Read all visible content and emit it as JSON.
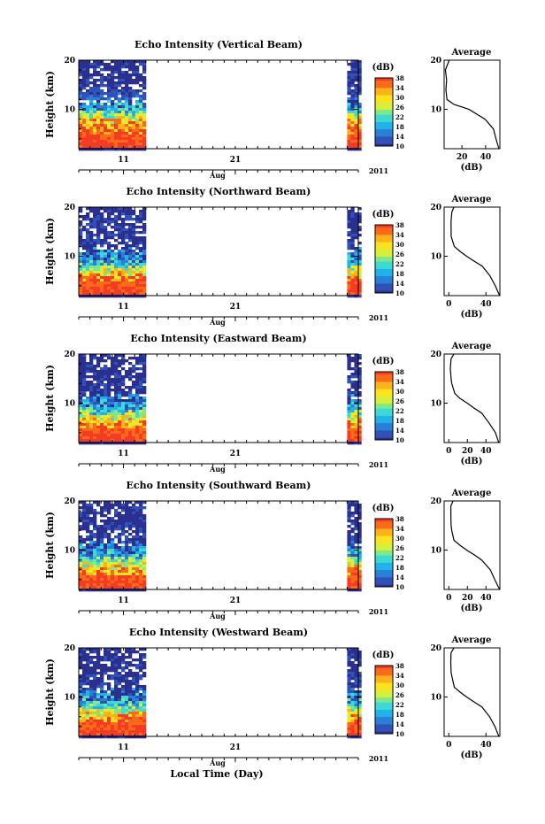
{
  "figure": {
    "x_axis_title": "Local Time (Day)",
    "month_label": "Aug",
    "year_label": "2011",
    "x_tick_labels": [
      "11",
      "21"
    ],
    "y_axis_title": "Height (km)",
    "y_tick_labels": [
      "20",
      "10"
    ],
    "colorbar_unit": "(dB)",
    "colorbar_tick_labels": [
      "38",
      "34",
      "30",
      "26",
      "22",
      "18",
      "14",
      "10"
    ],
    "colormap": [
      "#2b2f8f",
      "#3052b8",
      "#2a7fd6",
      "#22b2ea",
      "#3ed9d2",
      "#7ee88a",
      "#d6ef3c",
      "#fbe31e",
      "#fdb21a",
      "#fa6a19",
      "#f53b24"
    ],
    "side_panel_title": "Average",
    "side_unit": "(dB)"
  },
  "chart_data": [
    {
      "type": "heatmap",
      "title": "Echo Intensity (Vertical Beam)",
      "xlabel": "Local Time (Day)",
      "ylabel": "Height (km)",
      "xlim": [
        "Aug 7 2011",
        "Sep 1 2011"
      ],
      "ylim": [
        2,
        20
      ],
      "colorbar": {
        "label": "(dB)",
        "range": [
          10,
          38
        ]
      },
      "data_periods": [
        [
          "Aug 7",
          "Aug 13"
        ],
        [
          "Aug 31",
          "Sep 1"
        ]
      ],
      "layers_km_db": [
        [
          2,
          38
        ],
        [
          6,
          36
        ],
        [
          8,
          30
        ],
        [
          10,
          18
        ],
        [
          14,
          11
        ],
        [
          20,
          10
        ]
      ],
      "profile": {
        "title": "Average",
        "xlabel": "(dB)",
        "xticks": [
          "20",
          "40"
        ],
        "xlim": [
          5,
          52
        ],
        "x": [
          51,
          49,
          46,
          40,
          33,
          26,
          20,
          13,
          8,
          7,
          7,
          6,
          9
        ],
        "y": [
          2,
          4,
          6,
          8,
          9,
          10,
          10.5,
          11,
          12,
          14,
          16,
          18,
          20
        ]
      }
    },
    {
      "type": "heatmap",
      "title": "Echo Intensity (Northward Beam)",
      "xlabel": "Local Time (Day)",
      "ylabel": "Height (km)",
      "xlim": [
        "Aug 7 2011",
        "Sep 1 2011"
      ],
      "ylim": [
        2,
        20
      ],
      "colorbar": {
        "label": "(dB)",
        "range": [
          10,
          38
        ]
      },
      "data_periods": [
        [
          "Aug 7",
          "Aug 13"
        ],
        [
          "Aug 31",
          "Sep 1"
        ]
      ],
      "layers_km_db": [
        [
          2,
          38
        ],
        [
          5,
          36
        ],
        [
          7,
          28
        ],
        [
          9,
          18
        ],
        [
          12,
          11
        ],
        [
          20,
          10
        ]
      ],
      "profile": {
        "title": "Average",
        "xlabel": "(dB)",
        "xticks": [
          "0",
          "40"
        ],
        "xlim": [
          -5,
          55
        ],
        "x": [
          54,
          50,
          44,
          36,
          28,
          20,
          12,
          6,
          3,
          2,
          2,
          3,
          5
        ],
        "y": [
          2,
          4,
          6,
          8,
          9,
          10,
          11,
          12,
          14,
          15,
          17,
          19,
          20
        ]
      }
    },
    {
      "type": "heatmap",
      "title": "Echo Intensity (Eastward Beam)",
      "xlabel": "Local Time (Day)",
      "ylabel": "Height (km)",
      "xlim": [
        "Aug 7 2011",
        "Sep 1 2011"
      ],
      "ylim": [
        2,
        20
      ],
      "colorbar": {
        "label": "(dB)",
        "range": [
          10,
          38
        ]
      },
      "data_periods": [
        [
          "Aug 7",
          "Aug 13"
        ],
        [
          "Aug 31",
          "Sep 1"
        ]
      ],
      "layers_km_db": [
        [
          2,
          38
        ],
        [
          5,
          36
        ],
        [
          7,
          28
        ],
        [
          9,
          18
        ],
        [
          12,
          11
        ],
        [
          20,
          10
        ]
      ],
      "profile": {
        "title": "Average",
        "xlabel": "(dB)",
        "xticks": [
          "0",
          "20",
          "40"
        ],
        "xlim": [
          -5,
          55
        ],
        "x": [
          54,
          50,
          44,
          36,
          28,
          20,
          12,
          6,
          3,
          2,
          2,
          3,
          5
        ],
        "y": [
          2,
          4,
          6,
          8,
          9,
          10,
          11,
          12,
          14,
          15,
          17,
          19,
          20
        ]
      }
    },
    {
      "type": "heatmap",
      "title": "Echo Intensity (Southward Beam)",
      "xlabel": "Local Time (Day)",
      "ylabel": "Height (km)",
      "xlim": [
        "Aug 7 2011",
        "Sep 1 2011"
      ],
      "ylim": [
        2,
        20
      ],
      "colorbar": {
        "label": "(dB)",
        "range": [
          10,
          38
        ]
      },
      "data_periods": [
        [
          "Aug 7",
          "Aug 13"
        ],
        [
          "Aug 31",
          "Sep 1"
        ]
      ],
      "layers_km_db": [
        [
          2,
          38
        ],
        [
          5,
          36
        ],
        [
          7,
          28
        ],
        [
          9,
          18
        ],
        [
          12,
          11
        ],
        [
          20,
          10
        ]
      ],
      "profile": {
        "title": "Average",
        "xlabel": "(dB)",
        "xticks": [
          "0",
          "20",
          "40"
        ],
        "xlim": [
          -5,
          55
        ],
        "x": [
          54,
          50,
          44,
          36,
          28,
          20,
          12,
          6,
          3,
          2,
          2,
          3,
          5
        ],
        "y": [
          2,
          4,
          6,
          8,
          9,
          10,
          11,
          12,
          14,
          15,
          17,
          19,
          20
        ]
      }
    },
    {
      "type": "heatmap",
      "title": "Echo Intensity (Westward Beam)",
      "xlabel": "Local Time (Day)",
      "ylabel": "Height (km)",
      "xlim": [
        "Aug 7 2011",
        "Sep 1 2011"
      ],
      "ylim": [
        2,
        20
      ],
      "colorbar": {
        "label": "(dB)",
        "range": [
          10,
          38
        ]
      },
      "data_periods": [
        [
          "Aug 7",
          "Aug 13"
        ],
        [
          "Aug 31",
          "Sep 1"
        ]
      ],
      "layers_km_db": [
        [
          2,
          38
        ],
        [
          5,
          36
        ],
        [
          7,
          28
        ],
        [
          9,
          18
        ],
        [
          12,
          11
        ],
        [
          20,
          10
        ]
      ],
      "profile": {
        "title": "Average",
        "xlabel": "(dB)",
        "xticks": [
          "0",
          "40"
        ],
        "xlim": [
          -5,
          55
        ],
        "x": [
          54,
          50,
          44,
          36,
          28,
          20,
          12,
          6,
          3,
          2,
          2,
          3,
          5
        ],
        "y": [
          2,
          4,
          6,
          8,
          9,
          10,
          11,
          12,
          14,
          15,
          17,
          19,
          20
        ]
      }
    }
  ]
}
